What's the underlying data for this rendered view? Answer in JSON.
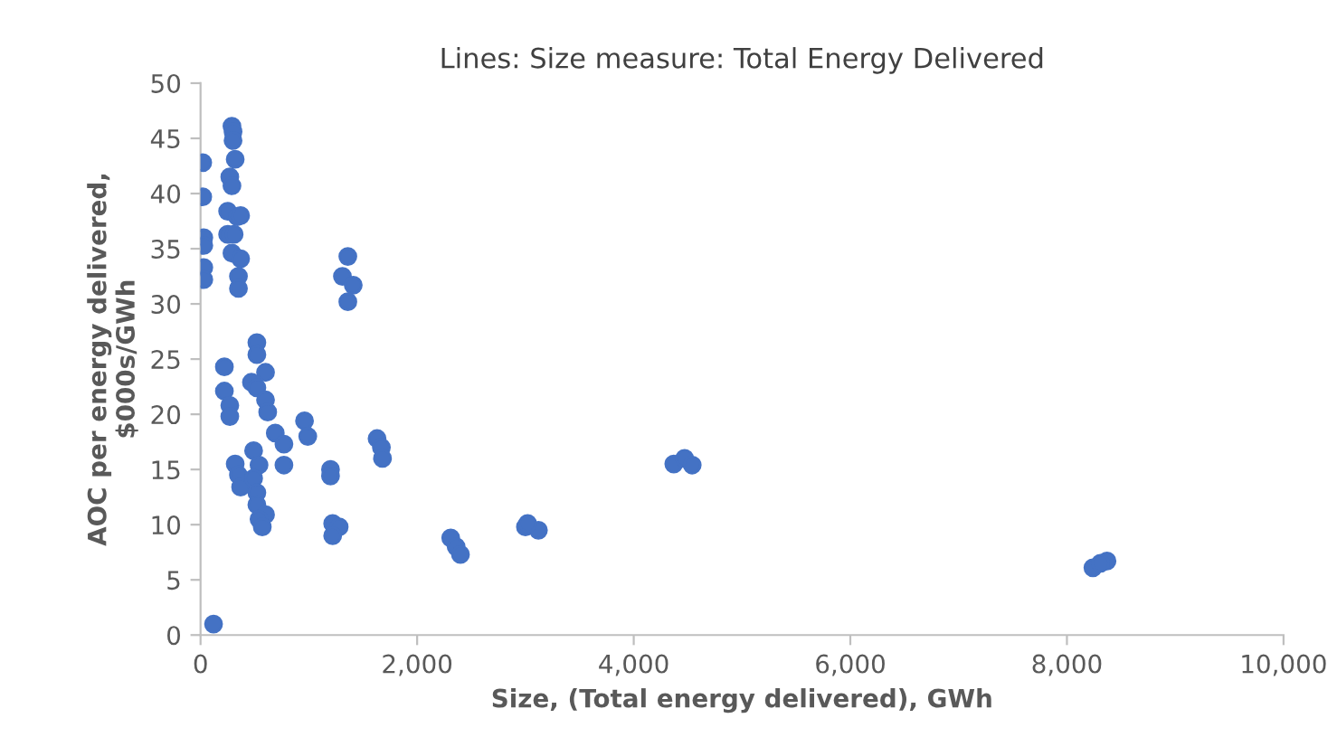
{
  "chart_data": {
    "type": "scatter",
    "title": "Lines: Size measure: Total Energy Delivered",
    "xlabel": "Size, (Total energy delivered), GWh",
    "ylabel": "AOC per energy delivered,\n$000s/GWh",
    "x": [
      20,
      20,
      30,
      30,
      30,
      30,
      120,
      290,
      300,
      300,
      320,
      270,
      290,
      250,
      340,
      250,
      310,
      290,
      350,
      350,
      370,
      370,
      220,
      220,
      270,
      270,
      520,
      520,
      600,
      470,
      520,
      600,
      620,
      690,
      770,
      770,
      960,
      990,
      320,
      350,
      370,
      490,
      540,
      490,
      520,
      520,
      600,
      540,
      570,
      1200,
      1200,
      1220,
      1280,
      1220,
      1360,
      1310,
      1410,
      1360,
      1630,
      1670,
      1680,
      2310,
      2360,
      2400,
      3000,
      3120,
      3020,
      4370,
      4470,
      4540,
      8240,
      8370,
      8310
    ],
    "values": [
      42.8,
      39.7,
      36,
      35.3,
      33.3,
      32.2,
      1,
      46.1,
      45.6,
      44.8,
      43.1,
      41.5,
      40.7,
      38.4,
      37.9,
      36.3,
      36.3,
      34.6,
      32.5,
      31.4,
      38,
      34.1,
      24.3,
      22.1,
      20.8,
      19.8,
      26.5,
      25.4,
      23.8,
      22.9,
      22.4,
      21.3,
      20.2,
      18.3,
      17.3,
      15.4,
      19.4,
      18,
      15.5,
      14.5,
      13.4,
      16.7,
      15.4,
      14.2,
      12.9,
      11.8,
      10.9,
      10.5,
      9.8,
      15,
      14.4,
      10.1,
      9.8,
      9,
      34.3,
      32.5,
      31.7,
      30.2,
      17.8,
      17,
      16,
      8.8,
      8,
      7.3,
      9.8,
      9.5,
      10.1,
      15.5,
      16,
      15.4,
      6.1,
      6.7,
      6.5
    ],
    "color": "#4472c4",
    "marker": "circle",
    "xlim": [
      0,
      10000
    ],
    "xticks": [
      {
        "value": 0,
        "label": "0"
      },
      {
        "value": 2000,
        "label": "2,000"
      },
      {
        "value": 4000,
        "label": "4,000"
      },
      {
        "value": 6000,
        "label": "6,000"
      },
      {
        "value": 8000,
        "label": "8,000"
      },
      {
        "value": 10000,
        "label": "10,000"
      }
    ],
    "ylim": [
      0,
      50
    ],
    "yticks": [
      0,
      5,
      10,
      15,
      20,
      25,
      30,
      35,
      40,
      45,
      50
    ],
    "grid": false
  }
}
